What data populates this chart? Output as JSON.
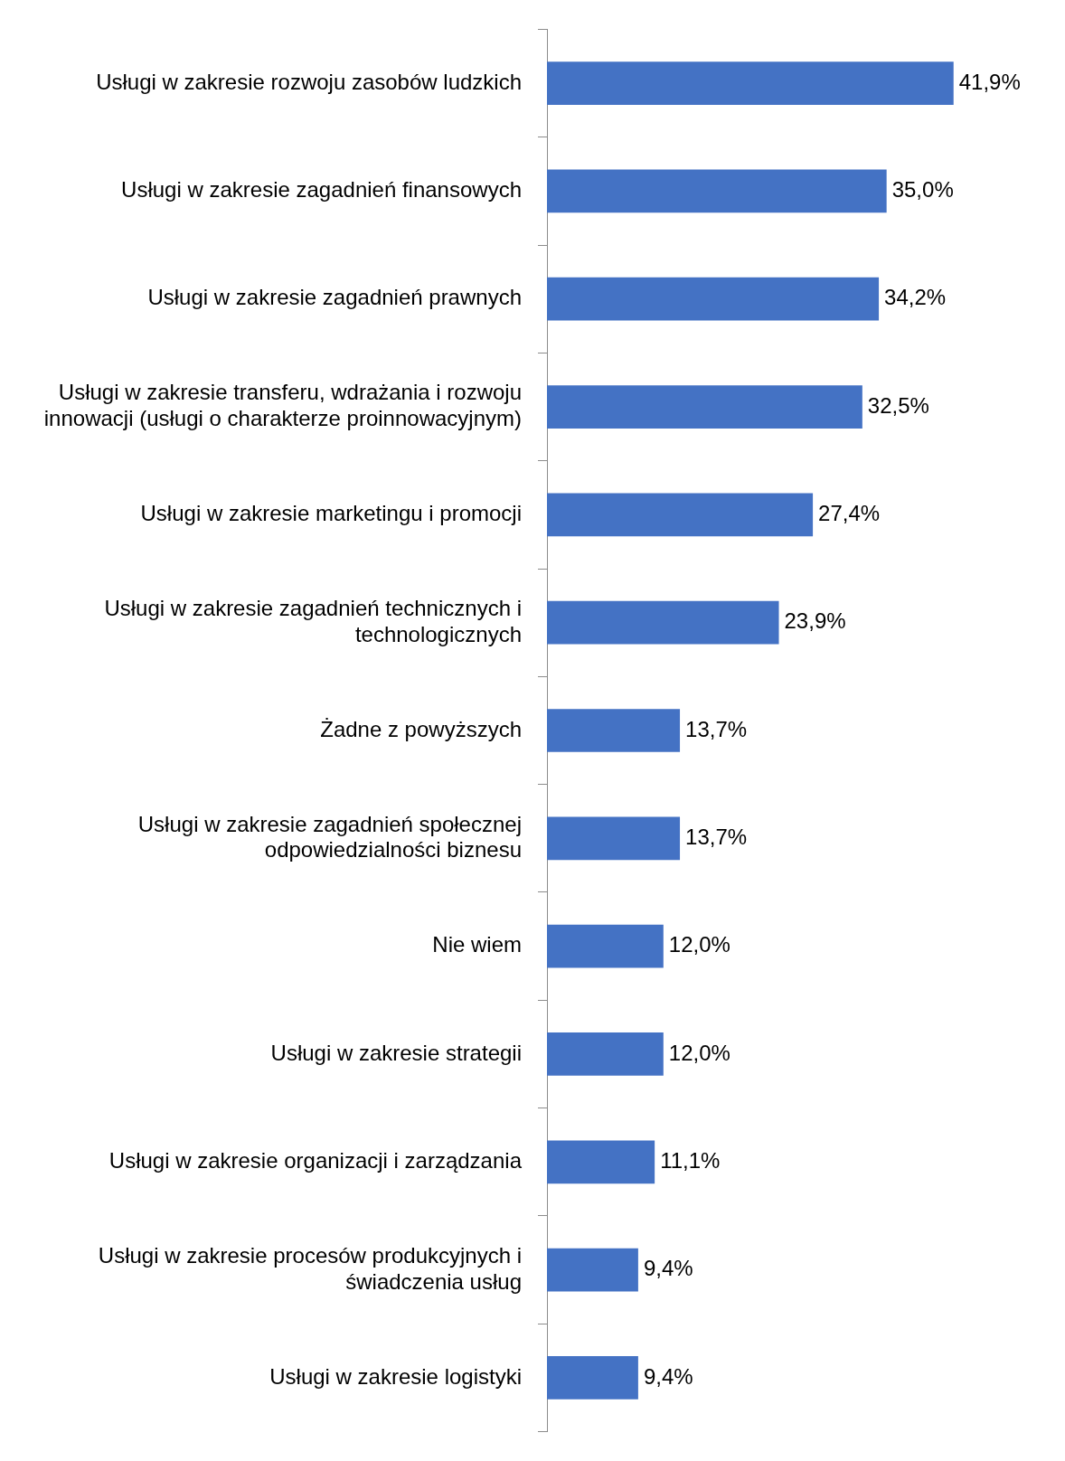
{
  "chart_data": {
    "type": "bar",
    "orientation": "horizontal",
    "categories": [
      "Usługi w zakresie rozwoju zasobów ludzkich",
      "Usługi w zakresie zagadnień finansowych",
      "Usługi w zakresie zagadnień prawnych",
      "Usługi w zakresie transferu, wdrażania i rozwoju innowacji (usługi o charakterze proinnowacyjnym)",
      "Usługi w zakresie marketingu i promocji",
      "Usługi w zakresie zagadnień technicznych i technologicznych",
      "Żadne z powyższych",
      "Usługi w zakresie zagadnień społecznej odpowiedzialności biznesu",
      "Nie wiem",
      "Usługi w zakresie strategii",
      "Usługi w zakresie organizacji i zarządzania",
      "Usługi w zakresie procesów produkcyjnych i świadczenia usług",
      "Usługi w zakresie logistyki"
    ],
    "values": [
      41.9,
      35.0,
      34.2,
      32.5,
      27.4,
      23.9,
      13.7,
      13.7,
      12.0,
      12.0,
      11.1,
      9.4,
      9.4
    ],
    "value_labels": [
      "41,9%",
      "35,0%",
      "34,2%",
      "32,5%",
      "27,4%",
      "23,9%",
      "13,7%",
      "13,7%",
      "12,0%",
      "12,0%",
      "11,1%",
      "9,4%",
      "9,4%"
    ],
    "color": "#4472c4"
  }
}
